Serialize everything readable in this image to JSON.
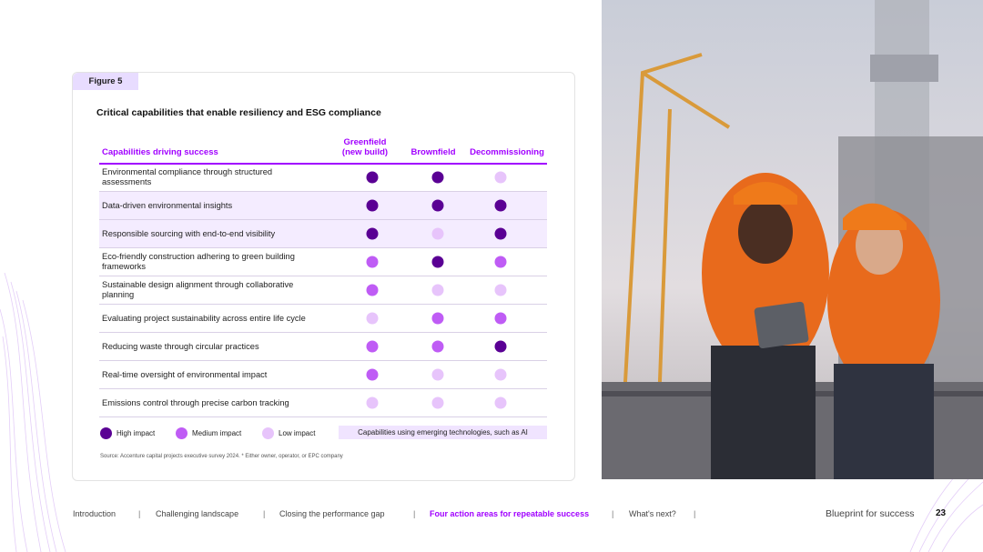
{
  "figure": {
    "label": "Figure 5",
    "title": "Critical capabilities that enable resiliency and ESG compliance"
  },
  "table": {
    "columns": [
      "Capabilities driving success",
      "Greenfield\n(new build)",
      "Brownfield",
      "Decommissioning"
    ],
    "rows": [
      {
        "label": "Environmental compliance through structured assessments",
        "values": [
          "High",
          "High",
          "Low"
        ],
        "emerging": false
      },
      {
        "label": "Data-driven environmental insights",
        "values": [
          "High",
          "High",
          "High"
        ],
        "emerging": true
      },
      {
        "label": "Responsible sourcing with end-to-end visibility",
        "values": [
          "High",
          "Low",
          "High"
        ],
        "emerging": true
      },
      {
        "label": "Eco-friendly construction adhering to green building frameworks",
        "values": [
          "Medium",
          "High",
          "Medium"
        ],
        "emerging": false
      },
      {
        "label": "Sustainable design alignment through collaborative planning",
        "values": [
          "Medium",
          "Low",
          "Low"
        ],
        "emerging": false
      },
      {
        "label": "Evaluating project sustainability across entire life cycle",
        "values": [
          "Low",
          "Medium",
          "Medium"
        ],
        "emerging": false
      },
      {
        "label": "Reducing waste through circular practices",
        "values": [
          "Medium",
          "Medium",
          "High"
        ],
        "emerging": false
      },
      {
        "label": "Real-time oversight of environmental impact",
        "values": [
          "Medium",
          "Low",
          "Low"
        ],
        "emerging": false
      },
      {
        "label": "Emissions control through precise carbon tracking",
        "values": [
          "Low",
          "Low",
          "Low"
        ],
        "emerging": false
      }
    ]
  },
  "legend": {
    "high": "High impact",
    "medium": "Medium impact",
    "low": "Low impact",
    "emerging": "Capabilities using emerging technologies, such as AI"
  },
  "source": "Source: Accenture capital projects executive survey 2024. * Either owner, operator, or EPC company",
  "colors": {
    "accent": "#a100ff",
    "high": "#5a0094",
    "medium": "#bf5cf5",
    "low": "#e7c4fb",
    "emerging_shade": "#f4ecff"
  },
  "footer": {
    "nav": [
      {
        "label": "Introduction",
        "active": false
      },
      {
        "label": "Challenging landscape",
        "active": false
      },
      {
        "label": "Closing the performance gap",
        "active": false
      },
      {
        "label": "Four action areas for repeatable success",
        "active": true
      },
      {
        "label": "What's next?",
        "active": false
      }
    ],
    "separator": "|",
    "brand": "Blueprint for success",
    "page_number": "23"
  }
}
